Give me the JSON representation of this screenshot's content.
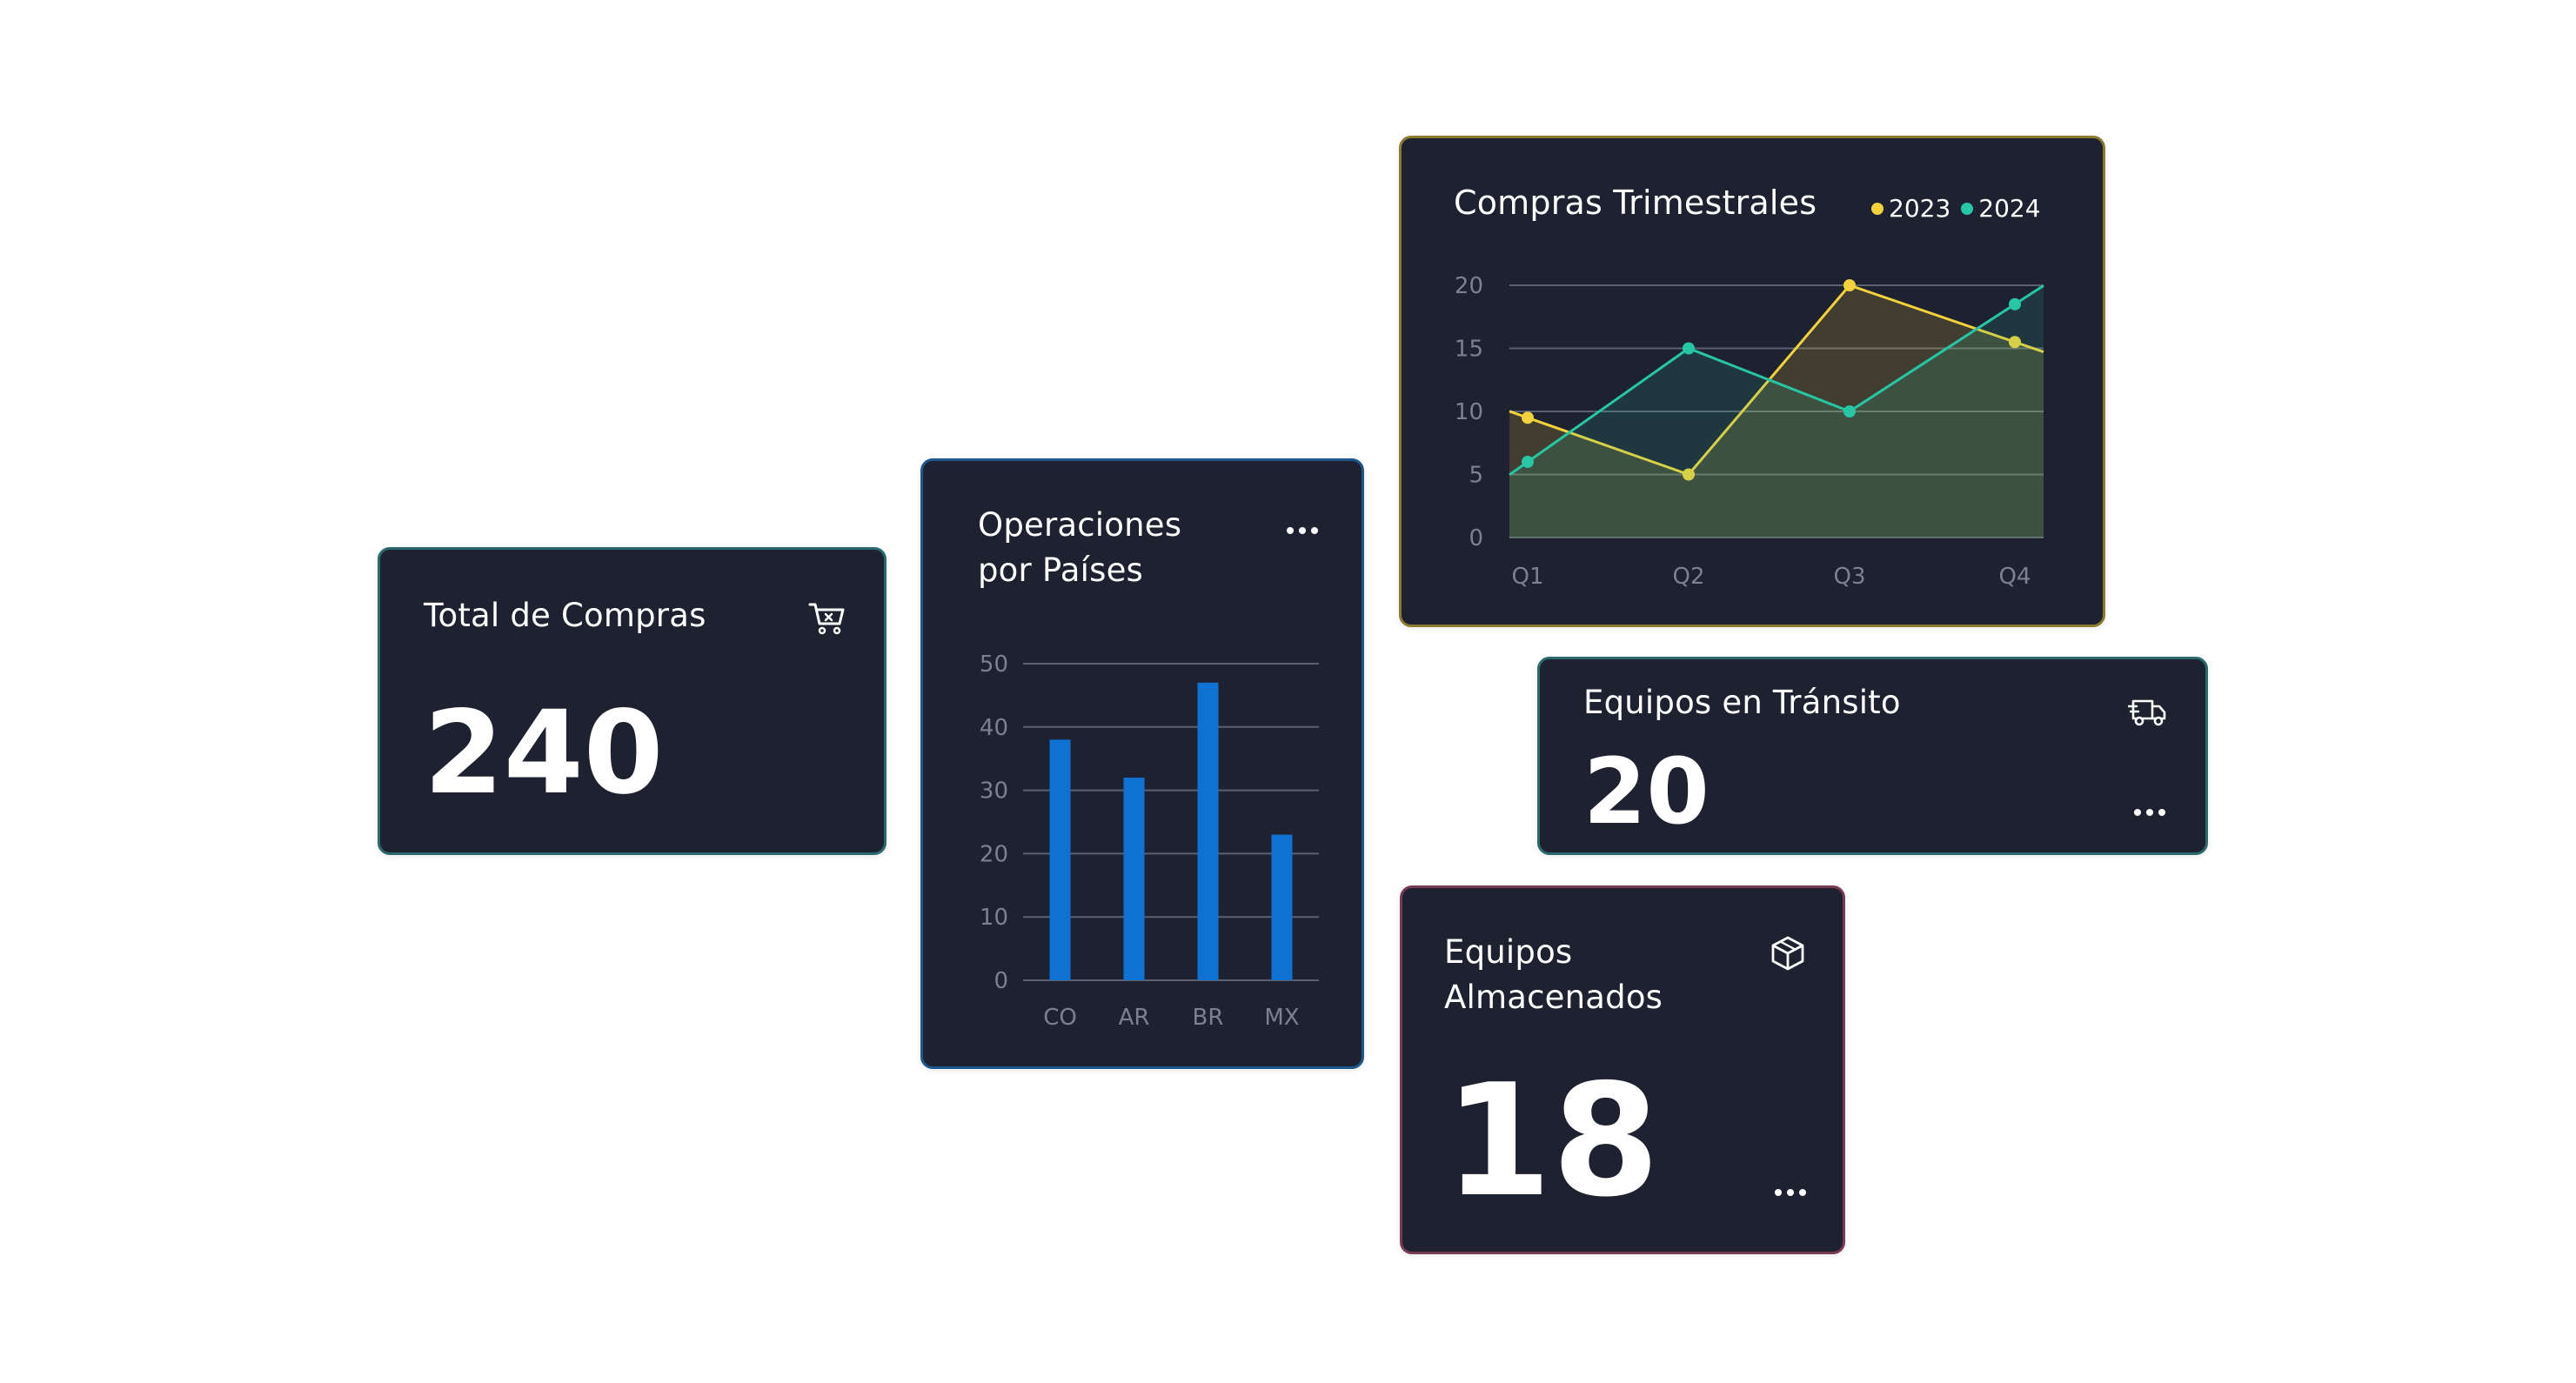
{
  "total_card": {
    "title": "Total de Compras",
    "value": "240",
    "icon": "cart-icon"
  },
  "ops_card": {
    "title": "Operaciones\npor Países",
    "menu_icon": "more-dots-icon"
  },
  "quarter_card": {
    "title": "Compras Trimestrales",
    "legend": [
      {
        "label": "2023",
        "color": "#f3d23b"
      },
      {
        "label": "2024",
        "color": "#27c6a4"
      }
    ]
  },
  "transit_card": {
    "title": "Equipos en Tránsito",
    "value": "20",
    "icon": "truck-icon",
    "menu_icon": "more-dots-icon"
  },
  "stored_card": {
    "title": "Equipos\nAlmacenados",
    "value": "18",
    "icon": "box-icon",
    "menu_icon": "more-dots-icon"
  },
  "chart_data": [
    {
      "type": "bar",
      "title": "Operaciones por Países",
      "categories": [
        "CO",
        "AR",
        "BR",
        "MX"
      ],
      "values": [
        38,
        32,
        47,
        23
      ],
      "ylim": [
        0,
        50
      ],
      "yticks": [
        0,
        10,
        20,
        30,
        40,
        50
      ],
      "color": "#0f72d2",
      "grid": true
    },
    {
      "type": "area",
      "title": "Compras Trimestrales",
      "categories": [
        "Q1",
        "Q2",
        "Q3",
        "Q4"
      ],
      "series": [
        {
          "name": "2023",
          "values": [
            9.5,
            5,
            20,
            15.5
          ],
          "color": "#f3d23b"
        },
        {
          "name": "2024",
          "values": [
            6,
            15,
            10,
            18.5
          ],
          "color": "#27c6a4"
        }
      ],
      "ylim": [
        0,
        20
      ],
      "yticks": [
        0,
        5,
        10,
        15,
        20
      ],
      "grid": true,
      "legend": "top-right"
    }
  ]
}
